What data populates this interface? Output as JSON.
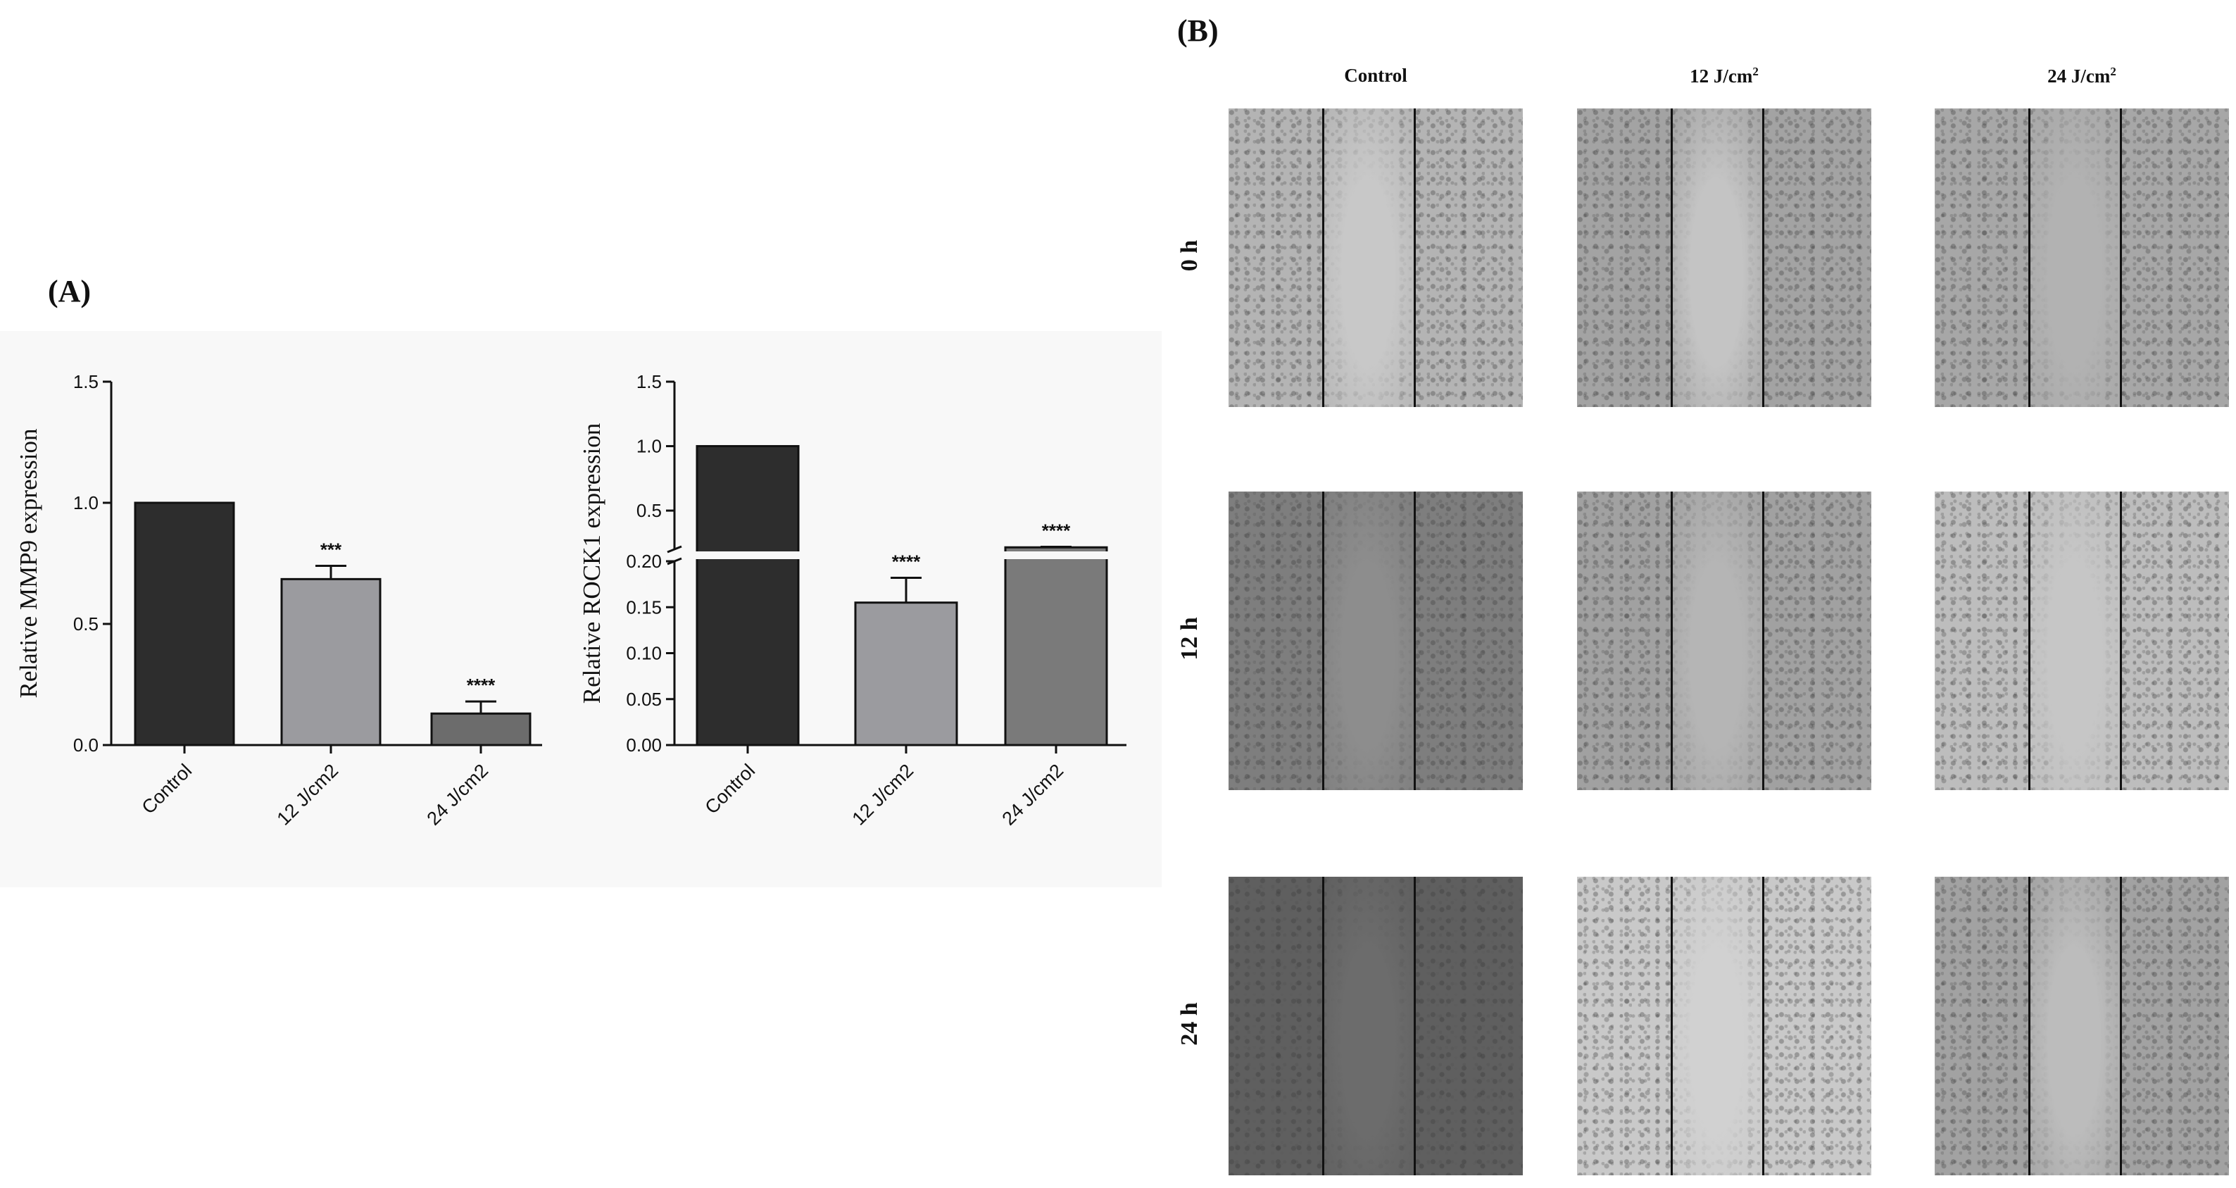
{
  "figure": {
    "panel_a_label": "(A)",
    "panel_b_label": "(B)"
  },
  "chart_data": [
    {
      "type": "bar",
      "categories": [
        "Control",
        "12 J/cm2",
        "24 J/cm2"
      ],
      "values": [
        1.0,
        0.685,
        0.13
      ],
      "errors": [
        0.0,
        0.055,
        0.05
      ],
      "significance": [
        "",
        "***",
        "****"
      ],
      "ylabel": "Relative MMP9 expression",
      "ylim": [
        0,
        1.5
      ],
      "yticks": [
        "0.0",
        "0.5",
        "1.0",
        "1.5"
      ],
      "bar_colors": [
        "#2d2d2d",
        "#9b9b9f",
        "#6c6c6c"
      ]
    },
    {
      "type": "bar",
      "broken_axis": true,
      "categories": [
        "Control",
        "12 J/cm2",
        "24 J/cm2"
      ],
      "values": [
        1.0,
        0.155,
        0.215
      ],
      "errors": [
        0.0,
        0.027,
        0.004
      ],
      "significance": [
        "",
        "****",
        "****"
      ],
      "ylabel": "Relative ROCK1 expression",
      "ylim_lower": [
        0,
        0.2
      ],
      "ylim_upper": [
        0.2,
        1.5
      ],
      "yticks_lower": [
        "0.00",
        "0.05",
        "0.10",
        "0.15",
        "0.20"
      ],
      "yticks_upper": [
        "0.5",
        "1.0",
        "1.5"
      ],
      "bar_colors": [
        "#2d2d2d",
        "#9b9b9f",
        "#7a7a7a"
      ]
    }
  ],
  "micrographs": {
    "columns": [
      {
        "label": "Control",
        "sup": ""
      },
      {
        "label": "12 J/cm",
        "sup": "2"
      },
      {
        "label": "24 J/cm",
        "sup": "2"
      }
    ],
    "rows": [
      "0 h",
      "12 h",
      "24 h"
    ],
    "tones": [
      [
        "#b4b4b4",
        "#a3a3a3",
        "#a7a7a7"
      ],
      [
        "#7e7e7e",
        "#a1a1a1",
        "#bdbdbd"
      ],
      [
        "#5f5f5f",
        "#c9c9c9",
        "#a2a2a2"
      ]
    ],
    "gap_tones": [
      [
        "#c8c8c8",
        "#c4c4c4",
        "#b2b2b2"
      ],
      [
        "#8d8d8d",
        "#b5b5b5",
        "#c6c6c6"
      ],
      [
        "#6c6c6c",
        "#d1d1d1",
        "#bcbcbc"
      ]
    ]
  }
}
